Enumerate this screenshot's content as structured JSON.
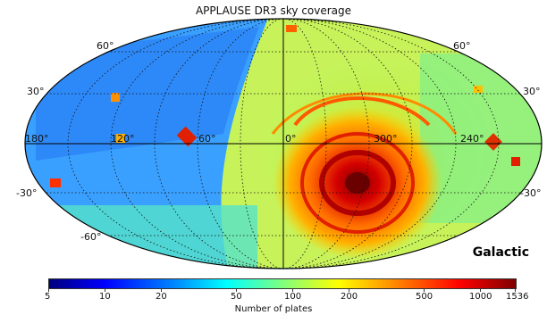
{
  "title": "APPLAUSE DR3 sky coverage",
  "projection": "mollweide",
  "frame": "Galactic",
  "longitude_labels": [
    "180°",
    "120°",
    "60°",
    "0°",
    "300°",
    "240°"
  ],
  "latitude_labels_left": [
    "60°",
    "30°",
    "-30°",
    "-60°"
  ],
  "latitude_labels_right": [
    "60°",
    "30°",
    "-30°"
  ],
  "colorbar": {
    "label": "Number of plates",
    "ticks": [
      "5",
      "10",
      "20",
      "50",
      "100",
      "200",
      "500",
      "1000",
      "1536"
    ],
    "scale": "log",
    "range": [
      5,
      1536
    ],
    "colormap": "jet"
  },
  "colors": {
    "low": "#0000ff",
    "mid": "#7fff7f",
    "high": "#ff0000",
    "max": "#7f0000"
  }
}
